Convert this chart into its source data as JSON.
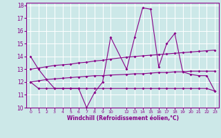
{
  "xlabel": "Windchill (Refroidissement éolien,°C)",
  "xlim": [
    -0.5,
    23.5
  ],
  "ylim": [
    10,
    18.2
  ],
  "yticks": [
    10,
    11,
    12,
    13,
    14,
    15,
    16,
    17,
    18
  ],
  "xtick_labels": [
    "0",
    "1",
    "2",
    "3",
    "4",
    "5",
    "6",
    "7",
    "8",
    "9",
    "10",
    "12",
    "13",
    "14",
    "15",
    "16",
    "17",
    "18",
    "19",
    "20",
    "21",
    "22",
    "23"
  ],
  "xtick_positions": [
    0,
    1,
    2,
    3,
    4,
    5,
    6,
    7,
    8,
    9,
    10,
    12,
    13,
    14,
    15,
    16,
    17,
    18,
    19,
    20,
    21,
    22,
    23
  ],
  "background_color": "#cce8e8",
  "line_color": "#880088",
  "grid_color": "#ffffff",
  "lines": [
    {
      "x": [
        0,
        1,
        2,
        3,
        4,
        5,
        6,
        7,
        8,
        9,
        10,
        12,
        13,
        14,
        15,
        16,
        17,
        18,
        19,
        20,
        21,
        22,
        23
      ],
      "y": [
        14.0,
        13.0,
        12.2,
        11.5,
        11.5,
        11.5,
        11.5,
        10.0,
        11.2,
        12.0,
        15.5,
        13.0,
        15.5,
        17.8,
        17.7,
        13.2,
        15.0,
        15.8,
        12.8,
        12.6,
        12.5,
        12.5,
        11.3
      ]
    },
    {
      "x": [
        0,
        1,
        2,
        3,
        4,
        5,
        6,
        7,
        8,
        9,
        10,
        12,
        13,
        14,
        15,
        16,
        17,
        18,
        19,
        20,
        21,
        22,
        23
      ],
      "y": [
        13.0,
        13.1,
        13.2,
        13.3,
        13.35,
        13.4,
        13.5,
        13.55,
        13.65,
        13.7,
        13.8,
        13.95,
        14.0,
        14.05,
        14.1,
        14.15,
        14.2,
        14.25,
        14.3,
        14.35,
        14.4,
        14.45,
        14.5
      ]
    },
    {
      "x": [
        0,
        1,
        2,
        3,
        4,
        5,
        6,
        7,
        8,
        9,
        10,
        12,
        13,
        14,
        15,
        16,
        17,
        18,
        19,
        20,
        21,
        22,
        23
      ],
      "y": [
        12.0,
        12.1,
        12.2,
        12.25,
        12.3,
        12.35,
        12.4,
        12.45,
        12.5,
        12.5,
        12.55,
        12.6,
        12.65,
        12.65,
        12.7,
        12.75,
        12.75,
        12.8,
        12.8,
        12.85,
        12.85,
        12.85,
        12.85
      ]
    },
    {
      "x": [
        0,
        1,
        2,
        3,
        4,
        5,
        6,
        7,
        8,
        9,
        10,
        12,
        13,
        14,
        15,
        16,
        17,
        18,
        19,
        20,
        21,
        22,
        23
      ],
      "y": [
        12.0,
        11.5,
        11.5,
        11.5,
        11.5,
        11.5,
        11.5,
        11.5,
        11.5,
        11.5,
        11.5,
        11.5,
        11.5,
        11.5,
        11.5,
        11.5,
        11.5,
        11.5,
        11.5,
        11.5,
        11.5,
        11.5,
        11.3
      ]
    }
  ]
}
